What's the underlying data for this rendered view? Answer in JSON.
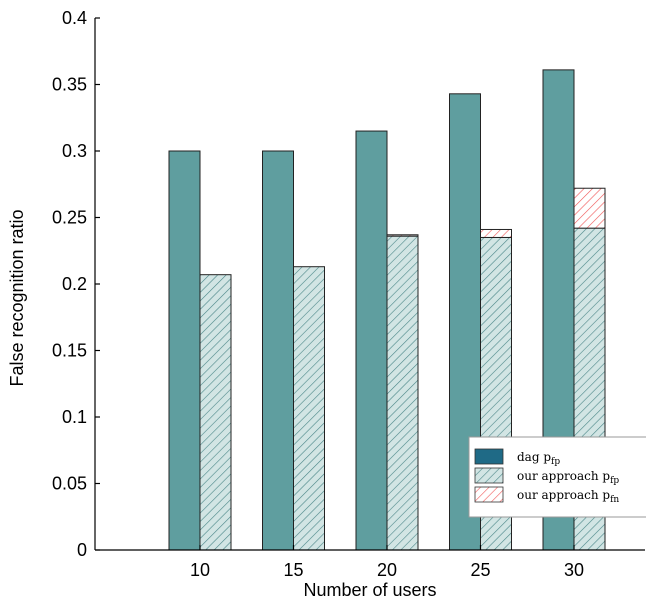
{
  "chart_data": {
    "type": "bar",
    "xlabel": "Number of users",
    "ylabel": "False recognition ratio",
    "categories": [
      "10",
      "15",
      "20",
      "25",
      "30"
    ],
    "ylim": [
      0,
      0.4
    ],
    "yticks": [
      "0",
      "0.05",
      "0.1",
      "0.15",
      "0.2",
      "0.25",
      "0.3",
      "0.35",
      "0.4"
    ],
    "series": [
      {
        "name": "dag p_fp",
        "legend_main": "dag p",
        "legend_sub": "fp",
        "stack": "a",
        "color": "#5f9e9f",
        "pattern": "solid",
        "values": [
          0.3,
          0.3,
          0.315,
          0.343,
          0.361
        ]
      },
      {
        "name": "our approach p_fp",
        "legend_main": "our approach p",
        "legend_sub": "fp",
        "stack": "b",
        "color": "#d2e5e4",
        "pattern": "hatch-teal",
        "values": [
          0.207,
          0.213,
          0.236,
          0.235,
          0.242
        ]
      },
      {
        "name": "our approach p_fn",
        "legend_main": "our approach p",
        "legend_sub": "fn",
        "stack": "b",
        "color": "#ffffff",
        "pattern": "hatch-red",
        "values": [
          0.0,
          0.0,
          0.001,
          0.006,
          0.03
        ]
      }
    ],
    "legend_position": "lower-right",
    "grid": false
  },
  "colors": {
    "solid_bar": "#5f9e9f",
    "hatch_fill": "#d2e5e4",
    "hatch_line": "#4a8688",
    "hatch_red": "#f05a5a",
    "legend_swatch_dag": "#1f6a86"
  }
}
